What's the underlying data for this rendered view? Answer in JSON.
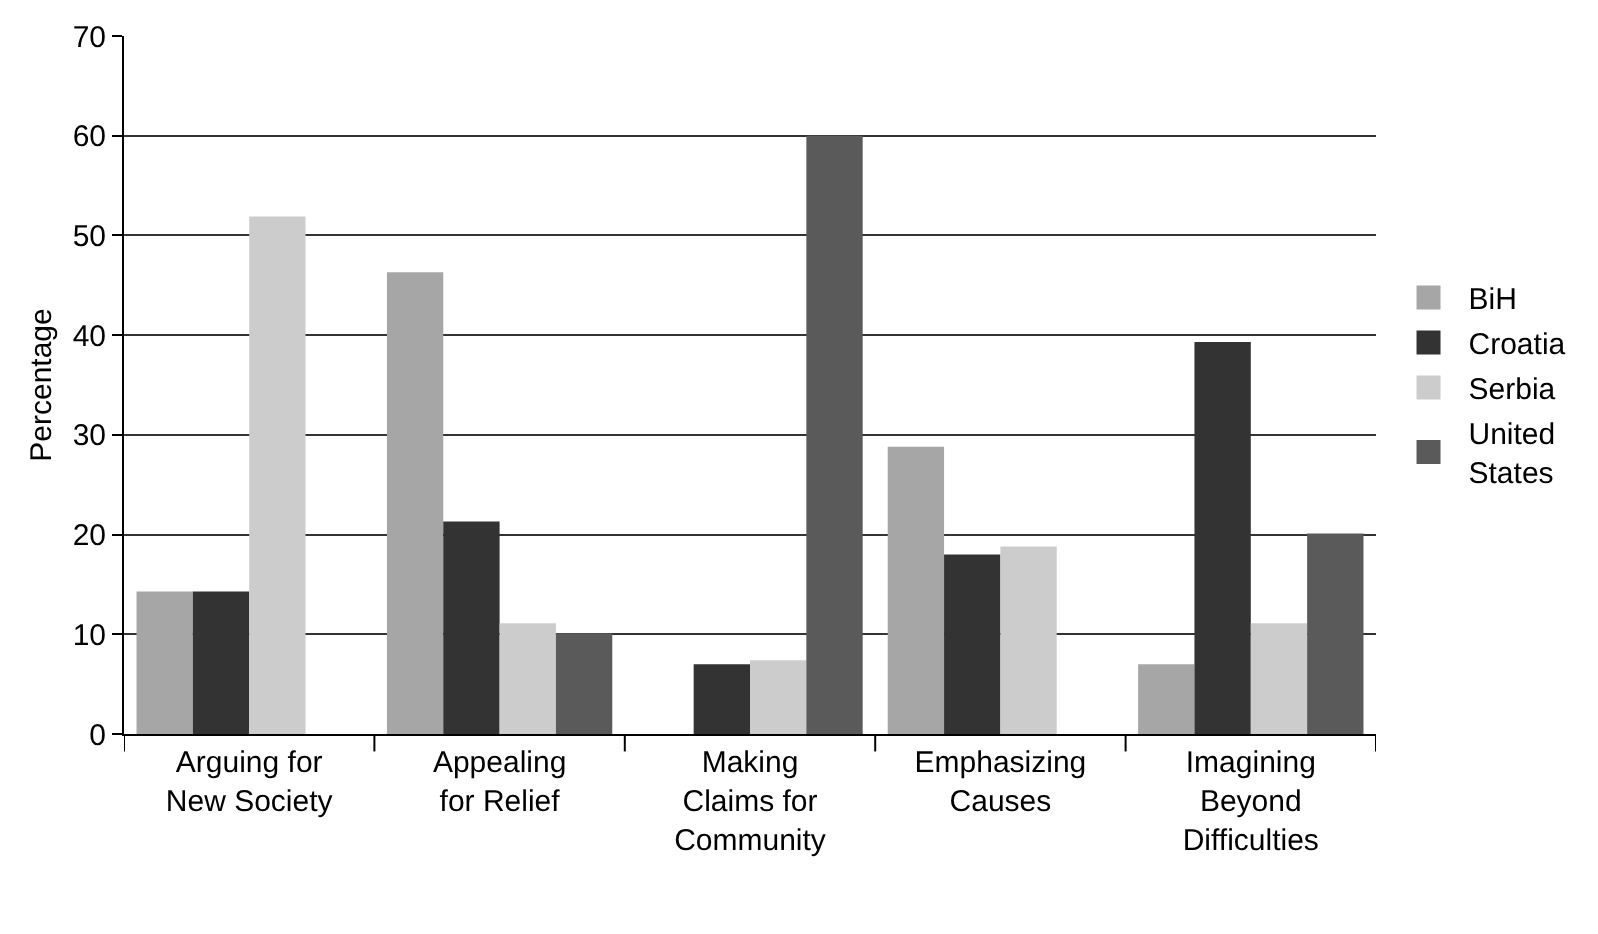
{
  "chart_data": {
    "type": "bar",
    "ylabel": "Percentage",
    "categories": [
      "Arguing for\nNew Society",
      "Appealing\nfor Relief",
      "Making\nClaims for\nCommunity",
      "Emphasizing\nCauses",
      "Imagining\nBeyond\nDifficulties"
    ],
    "series": [
      {
        "name": "BiH",
        "color": "#a6a6a6",
        "values": [
          14.3,
          46.3,
          null,
          28.8,
          7.0
        ]
      },
      {
        "name": "Croatia",
        "color": "#333333",
        "values": [
          14.3,
          21.3,
          7.0,
          18.0,
          39.3
        ]
      },
      {
        "name": "Serbia",
        "color": "#cccccc",
        "values": [
          51.9,
          11.1,
          7.4,
          18.8,
          11.1
        ]
      },
      {
        "name": "United\nStates",
        "color": "#5a5a5a",
        "values": [
          null,
          10.1,
          60.0,
          null,
          20.1
        ]
      }
    ],
    "ylim": [
      0,
      70
    ],
    "yticks": [
      0,
      10,
      20,
      30,
      40,
      50,
      60,
      70
    ],
    "grid": "y",
    "legend": "right"
  }
}
